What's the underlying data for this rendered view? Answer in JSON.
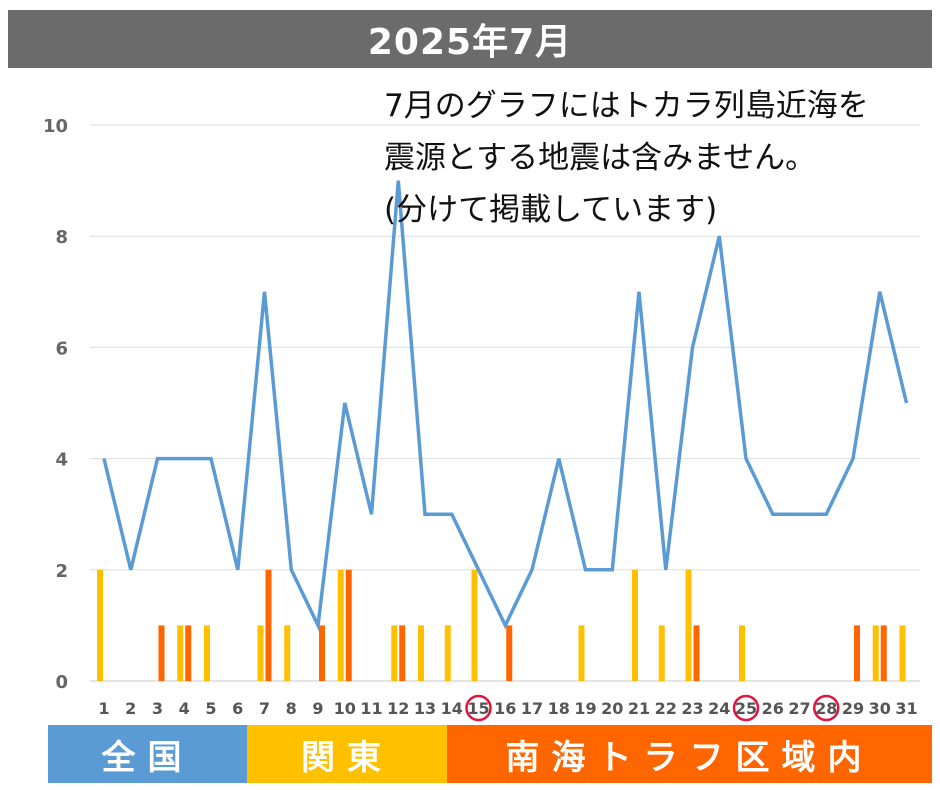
{
  "title": "2025年7月",
  "note_lines": [
    "7月のグラフにはトカラ列島近海を",
    "震源とする地震は含みません。",
    "(分けて掲載しています)"
  ],
  "legend": [
    {
      "label": "全国",
      "color": "#5b9bd5"
    },
    {
      "label": "関東",
      "color": "#ffc000"
    },
    {
      "label": "南海トラフ区域内",
      "color": "#ff6600"
    }
  ],
  "chart_data": {
    "type": "bar",
    "title": "2025年7月",
    "xlabel": "",
    "ylabel": "",
    "ylim": [
      0,
      10
    ],
    "yticks": [
      0,
      2,
      4,
      6,
      8,
      10
    ],
    "grid": true,
    "categories": [
      1,
      2,
      3,
      4,
      5,
      6,
      7,
      8,
      9,
      10,
      11,
      12,
      13,
      14,
      15,
      16,
      17,
      18,
      19,
      20,
      21,
      22,
      23,
      24,
      25,
      26,
      27,
      28,
      29,
      30,
      31
    ],
    "circled_categories": [
      15,
      25,
      28
    ],
    "series": [
      {
        "name": "全国",
        "kind": "line",
        "color": "#5b9bd5",
        "values": [
          4,
          2,
          4,
          4,
          4,
          2,
          7,
          2,
          1,
          5,
          3,
          9,
          3,
          3,
          2,
          1,
          2,
          4,
          2,
          2,
          7,
          2,
          6,
          8,
          4,
          3,
          3,
          3,
          4,
          7,
          5
        ]
      },
      {
        "name": "関東",
        "kind": "bar",
        "color": "#ffc000",
        "values": [
          2,
          0,
          0,
          1,
          1,
          0,
          1,
          1,
          0,
          2,
          0,
          1,
          1,
          1,
          2,
          0,
          0,
          0,
          1,
          0,
          2,
          1,
          2,
          0,
          1,
          0,
          0,
          0,
          0,
          1,
          1
        ]
      },
      {
        "name": "南海トラフ区域内",
        "kind": "bar",
        "color": "#ff6600",
        "values": [
          0,
          0,
          1,
          1,
          0,
          0,
          2,
          0,
          1,
          2,
          0,
          1,
          0,
          0,
          0,
          1,
          0,
          0,
          0,
          0,
          0,
          0,
          1,
          0,
          0,
          0,
          0,
          0,
          1,
          1,
          0
        ]
      }
    ]
  }
}
